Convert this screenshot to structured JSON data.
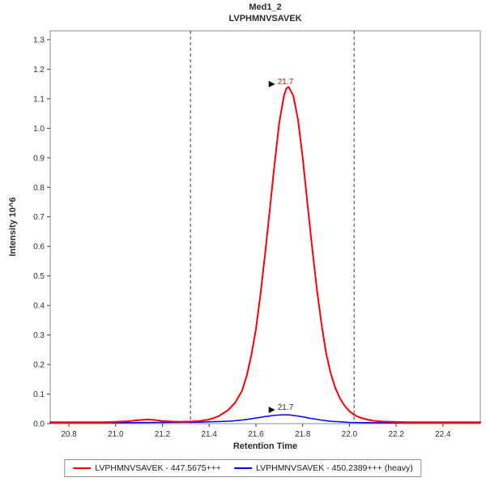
{
  "header": {
    "title": "Med1_2",
    "subtitle": "LVPHMNVSAVEK"
  },
  "chart_data": {
    "type": "line",
    "title": "Med1_2",
    "subtitle": "LVPHMNVSAVEK",
    "xlabel": "Retention Time",
    "ylabel": "Intensity 10^6",
    "xlim": [
      20.72,
      22.56
    ],
    "ylim": [
      0,
      1.33
    ],
    "x_ticks": [
      20.8,
      21.0,
      21.2,
      21.4,
      21.6,
      21.8,
      22.0,
      22.2,
      22.4
    ],
    "y_ticks": [
      0.0,
      0.1,
      0.2,
      0.3,
      0.4,
      0.5,
      0.6,
      0.7,
      0.8,
      0.9,
      1.0,
      1.1,
      1.2,
      1.3
    ],
    "grid": false,
    "integration_boundaries": [
      21.32,
      22.02
    ],
    "series": [
      {
        "name": "LVPHMNVSAVEK - 447.5675+++",
        "color": "#ff0000",
        "width": 2,
        "peak_rt": 21.7,
        "peak_intensity": 1.14,
        "points": [
          [
            20.72,
            0.005
          ],
          [
            20.85,
            0.005
          ],
          [
            20.95,
            0.005
          ],
          [
            21.0,
            0.006
          ],
          [
            21.05,
            0.008
          ],
          [
            21.1,
            0.012
          ],
          [
            21.14,
            0.014
          ],
          [
            21.17,
            0.012
          ],
          [
            21.2,
            0.009
          ],
          [
            21.24,
            0.007
          ],
          [
            21.28,
            0.006
          ],
          [
            21.32,
            0.007
          ],
          [
            21.36,
            0.009
          ],
          [
            21.4,
            0.014
          ],
          [
            21.44,
            0.025
          ],
          [
            21.48,
            0.045
          ],
          [
            21.51,
            0.07
          ],
          [
            21.54,
            0.11
          ],
          [
            21.56,
            0.16
          ],
          [
            21.58,
            0.23
          ],
          [
            21.6,
            0.32
          ],
          [
            21.62,
            0.44
          ],
          [
            21.64,
            0.58
          ],
          [
            21.66,
            0.73
          ],
          [
            21.68,
            0.88
          ],
          [
            21.7,
            1.02
          ],
          [
            21.72,
            1.11
          ],
          [
            21.73,
            1.135
          ],
          [
            21.74,
            1.14
          ],
          [
            21.76,
            1.11
          ],
          [
            21.78,
            1.03
          ],
          [
            21.8,
            0.9
          ],
          [
            21.82,
            0.75
          ],
          [
            21.84,
            0.6
          ],
          [
            21.86,
            0.46
          ],
          [
            21.88,
            0.34
          ],
          [
            21.9,
            0.24
          ],
          [
            21.92,
            0.17
          ],
          [
            21.94,
            0.12
          ],
          [
            21.96,
            0.085
          ],
          [
            21.98,
            0.06
          ],
          [
            22.0,
            0.042
          ],
          [
            22.02,
            0.03
          ],
          [
            22.04,
            0.022
          ],
          [
            22.07,
            0.015
          ],
          [
            22.1,
            0.01
          ],
          [
            22.14,
            0.007
          ],
          [
            22.18,
            0.006
          ],
          [
            22.25,
            0.005
          ],
          [
            22.4,
            0.005
          ],
          [
            22.56,
            0.005
          ]
        ]
      },
      {
        "name": "LVPHMNVSAVEK - 450.2389+++ (heavy)",
        "color": "#0000ff",
        "width": 1.5,
        "peak_rt": 21.7,
        "peak_intensity": 0.03,
        "points": [
          [
            20.72,
            0.003
          ],
          [
            21.0,
            0.003
          ],
          [
            21.2,
            0.004
          ],
          [
            21.35,
            0.005
          ],
          [
            21.45,
            0.007
          ],
          [
            21.5,
            0.009
          ],
          [
            21.55,
            0.013
          ],
          [
            21.6,
            0.019
          ],
          [
            21.64,
            0.024
          ],
          [
            21.68,
            0.028
          ],
          [
            21.71,
            0.03
          ],
          [
            21.74,
            0.03
          ],
          [
            21.77,
            0.027
          ],
          [
            21.8,
            0.023
          ],
          [
            21.84,
            0.017
          ],
          [
            21.88,
            0.012
          ],
          [
            21.92,
            0.008
          ],
          [
            21.96,
            0.006
          ],
          [
            22.0,
            0.004
          ],
          [
            22.1,
            0.003
          ],
          [
            22.3,
            0.003
          ],
          [
            22.56,
            0.003
          ]
        ]
      }
    ],
    "annotations": [
      {
        "x": 21.71,
        "y": 1.155,
        "label": "21.7",
        "color": "#ff0000",
        "marker": "right-triangle"
      },
      {
        "x": 21.71,
        "y": 0.052,
        "label": "21.7",
        "color": "#303030",
        "marker": "right-triangle"
      }
    ],
    "legend": {
      "position": "bottom",
      "entries": [
        {
          "label": "LVPHMNVSAVEK - 447.5675+++",
          "color": "#ff0000"
        },
        {
          "label": "LVPHMNVSAVEK - 450.2389+++ (heavy)",
          "color": "#0000ff"
        }
      ]
    }
  }
}
